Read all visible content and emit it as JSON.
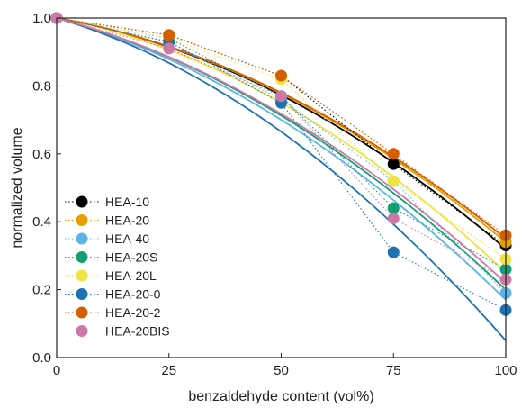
{
  "chart_data": {
    "type": "scatter",
    "title": "",
    "xlabel": "benzaldehyde content (vol%)",
    "ylabel": "normalized volume",
    "xlim": [
      0,
      100
    ],
    "ylim": [
      0.0,
      1.0
    ],
    "xticks": [
      0,
      25,
      50,
      75,
      100
    ],
    "yticks": [
      0.0,
      0.2,
      0.4,
      0.6,
      0.8,
      1.0
    ],
    "xtick_labels": [
      "0",
      "25",
      "50",
      "75",
      "100"
    ],
    "ytick_labels": [
      "0.0",
      "0.2",
      "0.4",
      "0.6",
      "0.8",
      "1.0"
    ],
    "legend_position": "bottom-left",
    "grid": false,
    "x": [
      0,
      25,
      50,
      75,
      100
    ],
    "series": [
      {
        "name": "HEA-10",
        "color": "#000000",
        "values": [
          1.0,
          0.95,
          0.83,
          0.57,
          0.33
        ],
        "fit_end": 0.32
      },
      {
        "name": "HEA-20",
        "color": "#e6a000",
        "values": [
          1.0,
          0.95,
          0.83,
          0.6,
          0.34
        ],
        "fit_end": 0.34
      },
      {
        "name": "HEA-40",
        "color": "#5bb4e5",
        "values": [
          1.0,
          0.93,
          0.76,
          0.52,
          0.19
        ],
        "fit_end": 0.17
      },
      {
        "name": "HEA-20S",
        "color": "#139f73",
        "values": [
          1.0,
          0.94,
          0.77,
          0.44,
          0.26
        ],
        "fit_end": 0.2
      },
      {
        "name": "HEA-20L",
        "color": "#f0e441",
        "values": [
          1.0,
          0.94,
          0.82,
          0.52,
          0.29
        ],
        "fit_end": 0.25
      },
      {
        "name": "HEA-20-0",
        "color": "#1f72b2",
        "values": [
          1.0,
          0.93,
          0.75,
          0.31,
          0.14
        ],
        "fit_end": 0.05
      },
      {
        "name": "HEA-20-2",
        "color": "#d55e00",
        "values": [
          1.0,
          0.95,
          0.83,
          0.6,
          0.36
        ],
        "fit_end": 0.35
      },
      {
        "name": "HEA-20BIS",
        "color": "#cc79a7",
        "values": [
          1.0,
          0.91,
          0.77,
          0.41,
          0.23
        ],
        "fit_end": 0.22
      }
    ]
  }
}
